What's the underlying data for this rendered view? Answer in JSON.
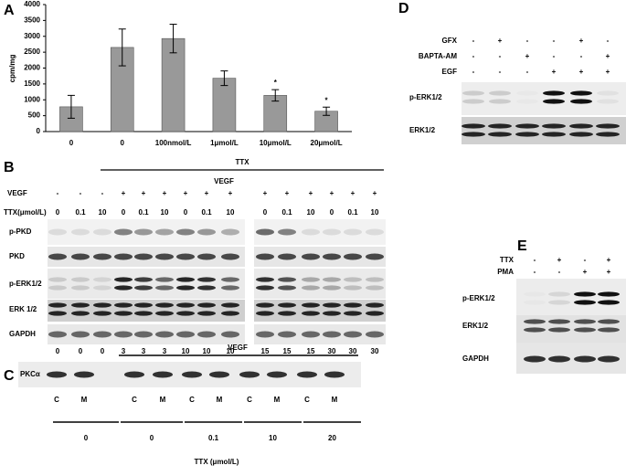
{
  "chart_data": {
    "type": "bar",
    "panel_label": "A",
    "y_label": "cpm/mg",
    "categories": [
      "0",
      "0",
      "100nmol/L",
      "1μmol/L",
      "10μmol/L",
      "20μmol/L"
    ],
    "values": [
      780,
      2650,
      2930,
      1680,
      1140,
      640
    ],
    "errors": [
      360,
      580,
      450,
      230,
      180,
      130
    ],
    "significance": [
      null,
      null,
      null,
      null,
      "*",
      "*"
    ],
    "color": "#999999",
    "ylim": [
      0,
      4000
    ],
    "yticks": [
      0,
      500,
      1000,
      1500,
      2000,
      2500,
      3000,
      3500,
      4000
    ]
  },
  "panel_b": {
    "label": "B",
    "treatment": "TTX",
    "stimulus": "VEGF",
    "row_labels": [
      "VEGF",
      "TTX(μmol/L)"
    ],
    "vegf": [
      "-",
      "-",
      "-",
      "+",
      "+",
      "+",
      "+",
      "+",
      "+",
      "+",
      "+",
      "+",
      "+",
      "+",
      "+"
    ],
    "ttx": [
      "0",
      "0.1",
      "10",
      "0",
      "0.1",
      "10",
      "0",
      "0.1",
      "10",
      "0",
      "0.1",
      "10",
      "0",
      "0.1",
      "10"
    ],
    "bands": [
      "p-PKD",
      "PKD",
      "p-ERK1/2",
      "ERK 1/2",
      "GAPDH"
    ],
    "time": [
      "0",
      "0",
      "0",
      "3",
      "3",
      "3",
      "10",
      "10",
      "10",
      "15",
      "15",
      "15",
      "30",
      "30",
      "30"
    ]
  },
  "panel_c": {
    "label": "C",
    "stimulus": "VEGF",
    "band": "PKCα",
    "lanes": [
      "C",
      "M",
      "C",
      "M",
      "C",
      "M",
      "C",
      "M",
      "C",
      "M"
    ],
    "ttx_groups": [
      "0",
      "0",
      "0.1",
      "10",
      "20"
    ],
    "axis_label": "TTX (μmol/L)"
  },
  "panel_d": {
    "label": "D",
    "treatments": [
      {
        "name": "GFX",
        "signs": [
          "-",
          "+",
          "-",
          "-",
          "+",
          "-"
        ]
      },
      {
        "name": "BAPTA-AM",
        "signs": [
          "-",
          "-",
          "+",
          "-",
          "-",
          "+"
        ]
      },
      {
        "name": "EGF",
        "signs": [
          "-",
          "-",
          "-",
          "+",
          "+",
          "+"
        ]
      }
    ],
    "bands": [
      "p-ERK1/2",
      "ERK1/2"
    ]
  },
  "panel_e": {
    "label": "E",
    "treatments": [
      {
        "name": "TTX",
        "signs": [
          "-",
          "+",
          "-",
          "+"
        ]
      },
      {
        "name": "PMA",
        "signs": [
          "-",
          "-",
          "+",
          "+"
        ]
      }
    ],
    "bands": [
      "p-ERK1/2",
      "ERK1/2",
      "GAPDH"
    ]
  }
}
